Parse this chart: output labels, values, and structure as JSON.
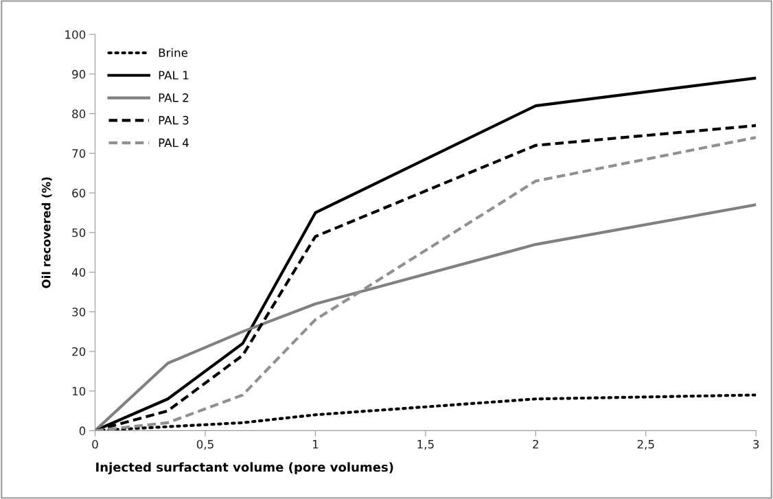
{
  "chart_data": {
    "type": "line",
    "xlabel": "Injected surfactant volume (pore volumes)",
    "ylabel": "Oil recovered (%)",
    "x": [
      0,
      0.33,
      0.67,
      1,
      2,
      3
    ],
    "series": [
      {
        "name": "Brine",
        "color": "#000000",
        "line_style": "dotted",
        "values": [
          0,
          1,
          2,
          4,
          8,
          9
        ]
      },
      {
        "name": "PAL 1",
        "color": "#000000",
        "line_style": "solid",
        "values": [
          0,
          8,
          22,
          55,
          82,
          89
        ]
      },
      {
        "name": "PAL 2",
        "color": "#808080",
        "line_style": "solid",
        "values": [
          0,
          17,
          25,
          32,
          47,
          57
        ]
      },
      {
        "name": "PAL 3",
        "color": "#000000",
        "line_style": "dashed",
        "values": [
          0,
          5,
          19,
          49,
          72,
          77
        ]
      },
      {
        "name": "PAL 4",
        "color": "#909090",
        "line_style": "dashed",
        "values": [
          0,
          2,
          9,
          28,
          63,
          74
        ]
      }
    ],
    "xlim": [
      0,
      3
    ],
    "xticks": [
      0,
      {
        "value": 0.5,
        "label": "0,5"
      },
      1,
      {
        "value": 1.5,
        "label": "1,5"
      },
      2,
      {
        "value": 2.5,
        "label": "2,5"
      },
      3
    ],
    "ylim": [
      0,
      100
    ],
    "yticks": [
      0,
      10,
      20,
      30,
      40,
      50,
      60,
      70,
      80,
      90,
      100
    ],
    "grid": false,
    "legend": "top left",
    "marker": "none"
  }
}
